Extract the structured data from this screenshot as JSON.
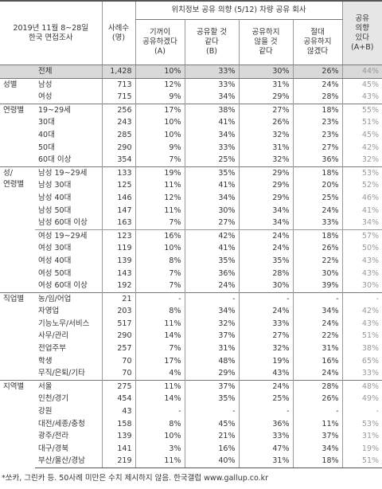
{
  "header": {
    "survey": [
      "2019년 11월 8~28일",
      "한국 면접조사"
    ],
    "sample": [
      "사례수",
      "(명)"
    ],
    "title": "위치정보 공유 의향 (5/12) 차량 공유 회사",
    "columns": [
      [
        "기꺼이",
        "공유하겠다",
        "(A)"
      ],
      [
        "공유할 것",
        "같다",
        "(B)"
      ],
      [
        "공유하지",
        "않을 것",
        "같다"
      ],
      [
        "절대",
        "공유하지",
        "않겠다"
      ]
    ],
    "net": [
      "공유",
      "의향",
      "있다",
      "(A+B)"
    ]
  },
  "table": {
    "total": [
      "전체",
      "1,428",
      "10%",
      "33%",
      "30%",
      "26%",
      "44%"
    ],
    "groups": [
      {
        "label": [
          "성별"
        ],
        "blocks": [
          [
            [
              "남성",
              "713",
              "12%",
              "33%",
              "31%",
              "24%",
              "45%"
            ],
            [
              "여성",
              "715",
              "9%",
              "34%",
              "29%",
              "28%",
              "43%"
            ]
          ]
        ]
      },
      {
        "label": [
          "연령별"
        ],
        "blocks": [
          [
            [
              "19~29세",
              "256",
              "17%",
              "38%",
              "27%",
              "18%",
              "55%"
            ],
            [
              "30대",
              "243",
              "10%",
              "41%",
              "26%",
              "23%",
              "51%"
            ],
            [
              "40대",
              "285",
              "10%",
              "34%",
              "32%",
              "23%",
              "45%"
            ],
            [
              "50대",
              "290",
              "9%",
              "33%",
              "31%",
              "27%",
              "42%"
            ],
            [
              "60대 이상",
              "354",
              "7%",
              "25%",
              "32%",
              "36%",
              "32%"
            ]
          ]
        ]
      },
      {
        "label": [
          "성/",
          "연령별"
        ],
        "blocks": [
          [
            [
              "남성 19~29세",
              "133",
              "19%",
              "35%",
              "29%",
              "18%",
              "53%"
            ],
            [
              "남성 30대",
              "125",
              "11%",
              "41%",
              "29%",
              "20%",
              "52%"
            ],
            [
              "남성 40대",
              "146",
              "12%",
              "34%",
              "29%",
              "25%",
              "46%"
            ],
            [
              "남성 50대",
              "147",
              "11%",
              "30%",
              "34%",
              "24%",
              "41%"
            ],
            [
              "남성 60대 이상",
              "163",
              "7%",
              "27%",
              "34%",
              "33%",
              "34%"
            ]
          ],
          [
            [
              "여성 19~29세",
              "123",
              "16%",
              "42%",
              "24%",
              "18%",
              "57%"
            ],
            [
              "여성 30대",
              "119",
              "10%",
              "41%",
              "24%",
              "26%",
              "50%"
            ],
            [
              "여성 40대",
              "139",
              "8%",
              "35%",
              "35%",
              "22%",
              "43%"
            ],
            [
              "여성 50대",
              "143",
              "7%",
              "36%",
              "28%",
              "30%",
              "43%"
            ],
            [
              "여성 60대 이상",
              "192",
              "7%",
              "24%",
              "30%",
              "39%",
              "30%"
            ]
          ]
        ]
      },
      {
        "label": [
          "직업별"
        ],
        "blocks": [
          [
            [
              "농/임/어업",
              "21",
              "-",
              "-",
              "-",
              "-",
              "-"
            ],
            [
              "자영업",
              "203",
              "8%",
              "34%",
              "24%",
              "34%",
              "42%"
            ],
            [
              "기능노무/서비스",
              "517",
              "11%",
              "32%",
              "33%",
              "24%",
              "43%"
            ],
            [
              "사무/관리",
              "290",
              "14%",
              "37%",
              "27%",
              "22%",
              "51%"
            ],
            [
              "전업주부",
              "257",
              "7%",
              "31%",
              "32%",
              "31%",
              "38%"
            ],
            [
              "학생",
              "70",
              "17%",
              "48%",
              "19%",
              "16%",
              "65%"
            ],
            [
              "무직/은퇴/기타",
              "70",
              "4%",
              "29%",
              "43%",
              "24%",
              "33%"
            ]
          ]
        ]
      },
      {
        "label": [
          "지역별"
        ],
        "blocks": [
          [
            [
              "서울",
              "275",
              "11%",
              "37%",
              "24%",
              "28%",
              "48%"
            ],
            [
              "인천/경기",
              "454",
              "14%",
              "35%",
              "25%",
              "26%",
              "49%"
            ],
            [
              "강원",
              "43",
              "-",
              "-",
              "-",
              "-",
              "-"
            ],
            [
              "대전/세종/충청",
              "158",
              "8%",
              "45%",
              "36%",
              "11%",
              "53%"
            ],
            [
              "광주/전라",
              "139",
              "10%",
              "21%",
              "33%",
              "37%",
              "31%"
            ],
            [
              "대구/경북",
              "141",
              "3%",
              "16%",
              "47%",
              "34%",
              "19%"
            ],
            [
              "부산/울산/경남",
              "219",
              "11%",
              "40%",
              "31%",
              "18%",
              "51%"
            ]
          ]
        ]
      }
    ]
  },
  "footer": "*쏘카, 그린카 등. 50사례 미만은 수치 제시하지 않음. 한국갤럽 www.gallup.co.kr"
}
